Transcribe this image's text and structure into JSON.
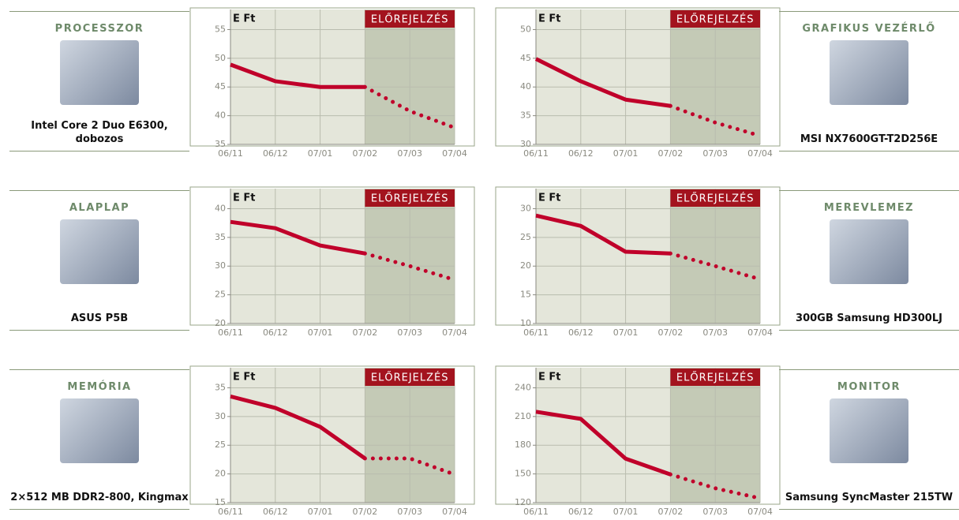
{
  "chart_data": [
    {
      "type": "line",
      "product": {
        "category": "PROCESSZOR",
        "name": "Intel Core 2 Duo E6300, dobozos"
      },
      "y_label": "E Ft",
      "annotation": "ELŐREJELZÉS",
      "forecast_from": "07/02",
      "categories": [
        "06/11",
        "06/12",
        "07/01",
        "07/02",
        "07/03",
        "07/04"
      ],
      "series": [
        {
          "color": "#c0002a",
          "style": "solid",
          "values": [
            48.9,
            46,
            45,
            45,
            null,
            null
          ]
        },
        {
          "color": "#c0002a",
          "style": "dotted",
          "values": [
            null,
            null,
            null,
            45,
            40.8,
            37.9
          ]
        }
      ],
      "ylim": [
        35,
        58.5
      ],
      "yticks": [
        35,
        40,
        45,
        50,
        55
      ],
      "grid": true
    },
    {
      "type": "line",
      "product": {
        "category": "GRAFIKUS VEZÉRLŐ",
        "name": "MSI NX7600GT-T2D256E"
      },
      "y_label": "E Ft",
      "annotation": "ELŐREJELZÉS",
      "forecast_from": "07/02",
      "categories": [
        "06/11",
        "06/12",
        "07/01",
        "07/02",
        "07/03",
        "07/04"
      ],
      "series": [
        {
          "color": "#c0002a",
          "style": "solid",
          "values": [
            44.9,
            41,
            37.8,
            36.7,
            null,
            null
          ]
        },
        {
          "color": "#c0002a",
          "style": "dotted",
          "values": [
            null,
            null,
            null,
            36.7,
            33.8,
            31.5
          ]
        }
      ],
      "ylim": [
        30,
        53.5
      ],
      "yticks": [
        30,
        35,
        40,
        45,
        50
      ],
      "grid": true
    },
    {
      "type": "line",
      "product": {
        "category": "ALAPLAP",
        "name": "ASUS P5B"
      },
      "y_label": "E Ft",
      "annotation": "ELŐREJELZÉS",
      "forecast_from": "07/02",
      "categories": [
        "06/11",
        "06/12",
        "07/01",
        "07/02",
        "07/03",
        "07/04"
      ],
      "series": [
        {
          "color": "#c0002a",
          "style": "solid",
          "values": [
            37.7,
            36.6,
            33.6,
            32.2,
            null,
            null
          ]
        },
        {
          "color": "#c0002a",
          "style": "dotted",
          "values": [
            null,
            null,
            null,
            32.2,
            30,
            27.6
          ]
        }
      ],
      "ylim": [
        20,
        43.5
      ],
      "yticks": [
        20,
        25,
        30,
        35,
        40
      ],
      "grid": true
    },
    {
      "type": "line",
      "product": {
        "category": "MEREVLEMEZ",
        "name": "300GB Samsung HD300LJ"
      },
      "y_label": "E Ft",
      "annotation": "ELŐREJELZÉS",
      "forecast_from": "07/02",
      "categories": [
        "06/11",
        "06/12",
        "07/01",
        "07/02",
        "07/03",
        "07/04"
      ],
      "series": [
        {
          "color": "#c0002a",
          "style": "solid",
          "values": [
            28.8,
            27,
            22.5,
            22.2,
            null,
            null
          ]
        },
        {
          "color": "#c0002a",
          "style": "dotted",
          "values": [
            null,
            null,
            null,
            22.2,
            20,
            17.7
          ]
        }
      ],
      "ylim": [
        10,
        33.5
      ],
      "yticks": [
        10,
        15,
        20,
        25,
        30
      ],
      "grid": true
    },
    {
      "type": "line",
      "product": {
        "category": "MEMÓRIA",
        "name": "2×512 MB DDR2-800, Kingmax"
      },
      "y_label": "E Ft",
      "annotation": "ELŐREJELZÉS",
      "forecast_from": "07/02",
      "categories": [
        "06/11",
        "06/12",
        "07/01",
        "07/02",
        "07/03",
        "07/04"
      ],
      "series": [
        {
          "color": "#c0002a",
          "style": "solid",
          "values": [
            33.5,
            31.5,
            28.2,
            22.7,
            null,
            null
          ]
        },
        {
          "color": "#c0002a",
          "style": "dotted",
          "values": [
            null,
            null,
            null,
            22.7,
            22.7,
            19.9
          ]
        }
      ],
      "ylim": [
        15,
        38.5
      ],
      "yticks": [
        15,
        20,
        25,
        30,
        35
      ],
      "grid": true
    },
    {
      "type": "line",
      "product": {
        "category": "MONITOR",
        "name": "Samsung SyncMaster 215TW"
      },
      "y_label": "E Ft",
      "annotation": "ELŐREJELZÉS",
      "forecast_from": "07/02",
      "categories": [
        "06/11",
        "06/12",
        "07/01",
        "07/02",
        "07/03",
        "07/04"
      ],
      "series": [
        {
          "color": "#c0002a",
          "style": "solid",
          "values": [
            215,
            207.5,
            166,
            149.5,
            null,
            null
          ]
        },
        {
          "color": "#c0002a",
          "style": "dotted",
          "values": [
            null,
            null,
            null,
            149.5,
            135,
            124.5
          ]
        }
      ],
      "ylim": [
        120,
        261
      ],
      "yticks": [
        120,
        150,
        180,
        210,
        240
      ],
      "grid": true
    }
  ]
}
